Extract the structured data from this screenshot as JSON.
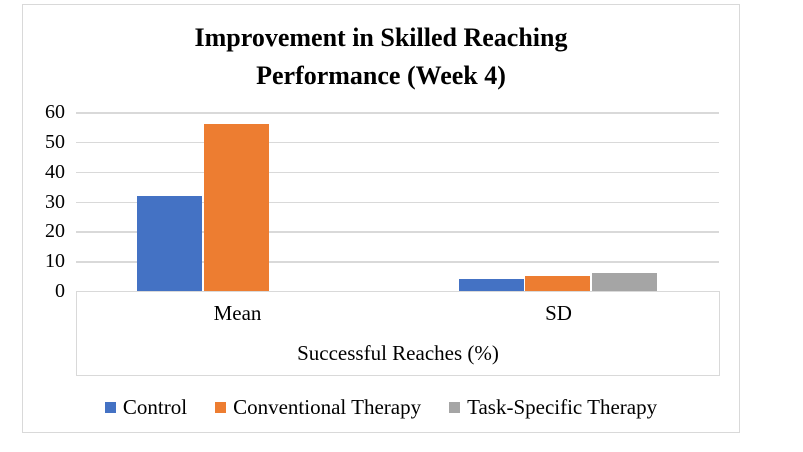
{
  "chart_data": {
    "type": "bar",
    "title": "Improvement in Skilled Reaching Performance (Week 4)",
    "categories": [
      "Mean",
      "SD"
    ],
    "series": [
      {
        "name": "Control",
        "color": "#4472C4",
        "values": [
          32,
          4
        ]
      },
      {
        "name": "Conventional Therapy",
        "color": "#ED7D31",
        "values": [
          56,
          5
        ]
      },
      {
        "name": "Task-Specific Therapy",
        "color": "#A5A5A5",
        "values": [
          0,
          6
        ]
      }
    ],
    "xlabel": "Successful Reaches (%)",
    "ylabel": "",
    "ylim": [
      0,
      60
    ],
    "yticks": [
      0,
      10,
      20,
      30,
      40,
      50,
      60
    ],
    "grid": true,
    "legend_position": "bottom",
    "colors": {
      "gridline": "#D9D9D9",
      "border": "#D9D9D9",
      "text": "#000000",
      "background": "#FFFFFF"
    }
  }
}
